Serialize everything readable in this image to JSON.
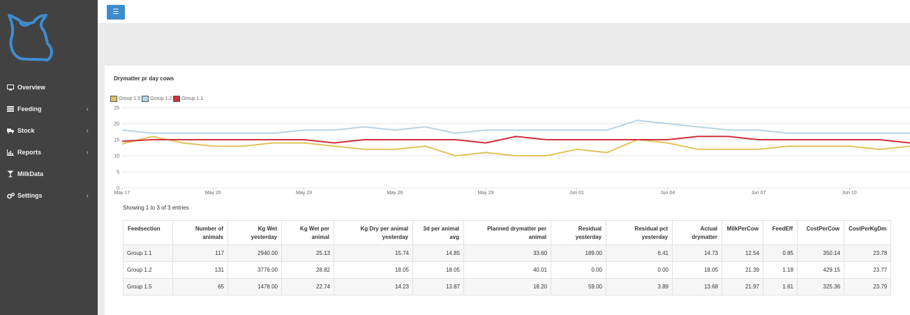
{
  "nav": [
    {
      "label": "Overview",
      "icon": "monitor-icon",
      "has_chevron": false
    },
    {
      "label": "Feeding",
      "icon": "list-icon",
      "has_chevron": true
    },
    {
      "label": "Stock",
      "icon": "truck-icon",
      "has_chevron": true
    },
    {
      "label": "Reports",
      "icon": "bar-chart-icon",
      "has_chevron": true
    },
    {
      "label": "MilkData",
      "icon": "glass-icon",
      "has_chevron": false
    },
    {
      "label": "Settings",
      "icon": "gears-icon",
      "has_chevron": true
    }
  ],
  "toolbar": {
    "menu_icon": "hamburger-icon"
  },
  "chart_data": {
    "type": "line",
    "title": "Drymatter pr day cows",
    "legend": [
      "Group 1.5",
      "Group 1.2",
      "Group 1.1"
    ],
    "y_ticks": [
      "25",
      "20",
      "15",
      "10",
      "5",
      "0"
    ],
    "x_tick_labels": [
      "May 17",
      "May 20",
      "May 23",
      "May 26",
      "May 29",
      "Jun 01",
      "Jun 04",
      "Jun 07",
      "Jun 10"
    ],
    "ylim": [
      0,
      25
    ],
    "legend_placement": "top-left",
    "grid": true,
    "series": [
      {
        "name": "Group 1.5",
        "color": "#e2c25c",
        "values": [
          13.7,
          16,
          14,
          13,
          13,
          14,
          14,
          13,
          12,
          12,
          13,
          10,
          11,
          10,
          10,
          12,
          11,
          15,
          14,
          12,
          12,
          12,
          13,
          13,
          13,
          12,
          13
        ]
      },
      {
        "name": "Group 1.2",
        "color": "#b7d3e4",
        "values": [
          18,
          17,
          17,
          17,
          17,
          17,
          18,
          18,
          19,
          18,
          19,
          17,
          18,
          18,
          18,
          18,
          18,
          21,
          20,
          19,
          18,
          18,
          17,
          17,
          17,
          17,
          17
        ]
      },
      {
        "name": "Group 1.1",
        "color": "#d0303a",
        "values": [
          14.5,
          15,
          15,
          15,
          15,
          15,
          15,
          14,
          15,
          15,
          15,
          15,
          14,
          16,
          15,
          15,
          15,
          15,
          15,
          16,
          16,
          15,
          15,
          15,
          15,
          15,
          14
        ]
      }
    ]
  },
  "table": {
    "info": "Showing 1 to 3 of 3 entries",
    "headers": [
      [
        "Feedsection",
        ""
      ],
      [
        "Number of",
        "animals"
      ],
      [
        "Kg Wet",
        "yesterday"
      ],
      [
        "Kg Wet per",
        "animal"
      ],
      [
        "Kg Dry per animal",
        "yesterday"
      ],
      [
        "3d per animal",
        "avg"
      ],
      [
        "Planned drymatter per",
        "animal"
      ],
      [
        "Residual",
        "yesterday"
      ],
      [
        "Residual pct",
        "yesterday"
      ],
      [
        "Actual",
        "drymatter"
      ],
      [
        "MilkPerCow",
        ""
      ],
      [
        "FeedEff",
        ""
      ],
      [
        "CostPerCow",
        ""
      ],
      [
        "CostPerKgDm",
        ""
      ]
    ],
    "rows": [
      [
        "Group 1.1",
        "117",
        "2940.00",
        "25.13",
        "15.74",
        "14.85",
        "33.60",
        "189.00",
        "6.41",
        "14.73",
        "12.54",
        "0.85",
        "350.14",
        "23.78"
      ],
      [
        "Group 1.2",
        "131",
        "3776.00",
        "28.82",
        "18.05",
        "18.05",
        "40.01",
        "0.00",
        "0.00",
        "18.05",
        "21.39",
        "1.18",
        "429.15",
        "23.77"
      ],
      [
        "Group 1.5",
        "65",
        "1478.00",
        "22.74",
        "14.23",
        "13.87",
        "18.20",
        "59.00",
        "3.89",
        "13.68",
        "21.97",
        "1.61",
        "325.36",
        "23.79"
      ]
    ]
  }
}
